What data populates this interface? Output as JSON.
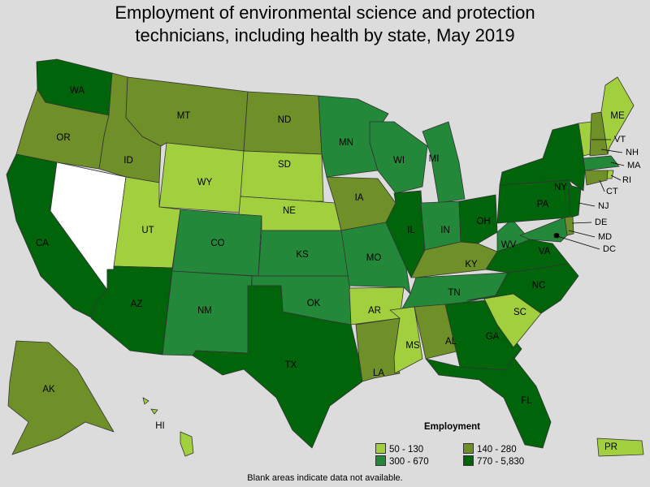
{
  "title_lines": [
    "Employment of environmental science and protection",
    "technicians, including health by state, May 2019"
  ],
  "legend": {
    "title": "Employment",
    "items": [
      {
        "label": "50 - 130",
        "color": "#a2cf3e"
      },
      {
        "label": "140 - 280",
        "color": "#6f8f28"
      },
      {
        "label": "300 - 670",
        "color": "#23883a"
      },
      {
        "label": "770 - 5,830",
        "color": "#00640b"
      }
    ]
  },
  "footnote": "Blank areas indicate data not available.",
  "colors": {
    "background": "#dcdcdc",
    "no_data": "#ffffff",
    "bin_1": "#a2cf3e",
    "bin_2": "#6f8f28",
    "bin_3": "#23883a",
    "bin_4": "#00640b"
  },
  "states": {
    "WA": {
      "label": "WA",
      "bin": 4
    },
    "OR": {
      "label": "OR",
      "bin": 2
    },
    "CA": {
      "label": "CA",
      "bin": 4
    },
    "NV": {
      "label": "",
      "bin": 0
    },
    "ID": {
      "label": "ID",
      "bin": 2
    },
    "MT": {
      "label": "MT",
      "bin": 2
    },
    "WY": {
      "label": "WY",
      "bin": 1
    },
    "UT": {
      "label": "UT",
      "bin": 1
    },
    "AZ": {
      "label": "AZ",
      "bin": 4
    },
    "CO": {
      "label": "CO",
      "bin": 3
    },
    "NM": {
      "label": "NM",
      "bin": 3
    },
    "ND": {
      "label": "ND",
      "bin": 2
    },
    "SD": {
      "label": "SD",
      "bin": 1
    },
    "NE": {
      "label": "NE",
      "bin": 1
    },
    "KS": {
      "label": "KS",
      "bin": 3
    },
    "OK": {
      "label": "OK",
      "bin": 3
    },
    "TX": {
      "label": "TX",
      "bin": 4
    },
    "MN": {
      "label": "MN",
      "bin": 3
    },
    "IA": {
      "label": "IA",
      "bin": 2
    },
    "MO": {
      "label": "MO",
      "bin": 3
    },
    "AR": {
      "label": "AR",
      "bin": 1
    },
    "LA": {
      "label": "LA",
      "bin": 2
    },
    "WI": {
      "label": "WI",
      "bin": 3
    },
    "IL": {
      "label": "IL",
      "bin": 4
    },
    "MI": {
      "label": "MI",
      "bin": 3
    },
    "IN": {
      "label": "IN",
      "bin": 3
    },
    "OH": {
      "label": "OH",
      "bin": 4
    },
    "KY": {
      "label": "KY",
      "bin": 2
    },
    "TN": {
      "label": "TN",
      "bin": 3
    },
    "MS": {
      "label": "MS",
      "bin": 1
    },
    "AL": {
      "label": "AL",
      "bin": 2
    },
    "GA": {
      "label": "GA",
      "bin": 4
    },
    "FL": {
      "label": "FL",
      "bin": 4
    },
    "SC": {
      "label": "SC",
      "bin": 1
    },
    "NC": {
      "label": "NC",
      "bin": 4
    },
    "VA": {
      "label": "VA",
      "bin": 4
    },
    "WV": {
      "label": "WV",
      "bin": 3
    },
    "PA": {
      "label": "PA",
      "bin": 4
    },
    "NY": {
      "label": "NY",
      "bin": 4
    },
    "ME": {
      "label": "ME",
      "bin": 1
    },
    "VT": {
      "label": "VT",
      "bin": 1
    },
    "NH": {
      "label": "NH",
      "bin": 2
    },
    "MA": {
      "label": "MA",
      "bin": 3
    },
    "RI": {
      "label": "RI",
      "bin": 1
    },
    "CT": {
      "label": "CT",
      "bin": 2
    },
    "NJ": {
      "label": "NJ",
      "bin": 4
    },
    "DE": {
      "label": "DE",
      "bin": 2
    },
    "MD": {
      "label": "MD",
      "bin": 3
    },
    "DC": {
      "label": "DC",
      "bin": 4
    },
    "AK": {
      "label": "AK",
      "bin": 2
    },
    "HI": {
      "label": "HI",
      "bin": 1
    },
    "PR": {
      "label": "PR",
      "bin": 1
    }
  }
}
